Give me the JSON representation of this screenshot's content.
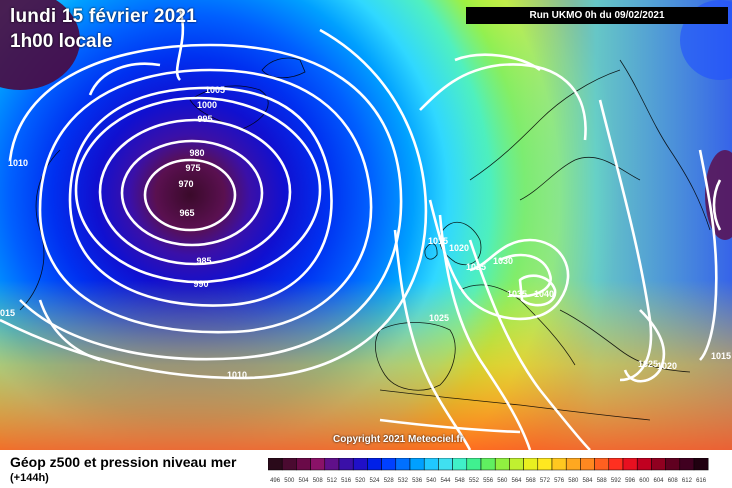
{
  "header": {
    "date": "lundi 15 février 2021",
    "time": "1h00 locale",
    "run": "Run UKMO 0h du 09/02/2021"
  },
  "copyright": "Copyright 2021 Meteociel.fr",
  "footer": {
    "title": "Géop z500 et pression niveau mer",
    "subtitle": "(+144h)"
  },
  "legend": {
    "values": [
      496,
      500,
      504,
      508,
      512,
      516,
      520,
      524,
      528,
      532,
      536,
      540,
      544,
      548,
      552,
      556,
      560,
      564,
      568,
      572,
      576,
      580,
      584,
      588,
      592,
      596,
      600,
      604,
      608,
      612,
      616
    ],
    "colors": [
      "#2a0a1a",
      "#4a0a30",
      "#6a0a48",
      "#8a1268",
      "#60108a",
      "#3a10a8",
      "#2010c8",
      "#0020e8",
      "#0040ff",
      "#0070ff",
      "#00a0ff",
      "#20c8ff",
      "#40e0f0",
      "#40f0c8",
      "#40f090",
      "#60f060",
      "#90f040",
      "#c0f030",
      "#e8f020",
      "#ffe820",
      "#ffc820",
      "#ffa820",
      "#ff8820",
      "#ff6020",
      "#ff3020",
      "#e81020",
      "#c00020",
      "#900020",
      "#600020",
      "#400020",
      "#200010"
    ]
  },
  "isobar_labels": [
    {
      "text": "1005"
    },
    {
      "text": "1000"
    },
    {
      "text": "995"
    },
    {
      "text": "980"
    },
    {
      "text": "975"
    },
    {
      "text": "970"
    },
    {
      "text": "965"
    },
    {
      "text": "985"
    },
    {
      "text": "990"
    },
    {
      "text": "1010"
    },
    {
      "text": "1015"
    },
    {
      "text": "1010"
    },
    {
      "text": "1015"
    },
    {
      "text": "1020"
    },
    {
      "text": "1025"
    },
    {
      "text": "1030"
    },
    {
      "text": "1035"
    },
    {
      "text": "1040"
    },
    {
      "text": "1025"
    },
    {
      "text": "1025"
    },
    {
      "text": "1020"
    },
    {
      "text": "1015"
    }
  ]
}
